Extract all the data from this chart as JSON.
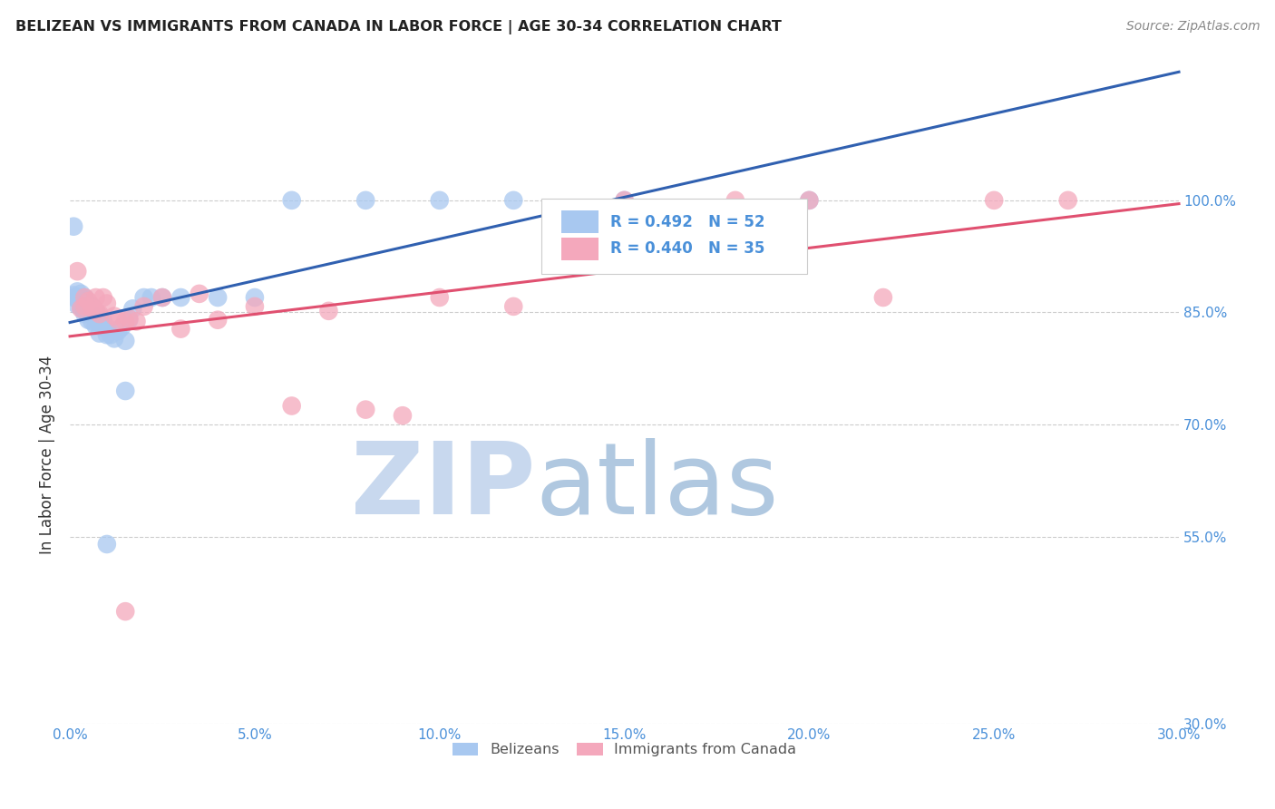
{
  "title": "BELIZEAN VS IMMIGRANTS FROM CANADA IN LABOR FORCE | AGE 30-34 CORRELATION CHART",
  "source": "Source: ZipAtlas.com",
  "ylabel": "In Labor Force | Age 30-34",
  "xlim": [
    0.0,
    0.3
  ],
  "ylim": [
    0.3,
    1.02
  ],
  "xtick_vals": [
    0.0,
    0.05,
    0.1,
    0.15,
    0.2,
    0.25,
    0.3
  ],
  "xtick_labels": [
    "0.0%",
    "5.0%",
    "10.0%",
    "15.0%",
    "20.0%",
    "25.0%",
    "30.0%"
  ],
  "ytick_vals": [
    0.3,
    0.55,
    0.7,
    0.85,
    1.0
  ],
  "ytick_labels": [
    "30.0%",
    "55.0%",
    "70.0%",
    "85.0%",
    "100.0%"
  ],
  "blue_color": "#a8c8f0",
  "pink_color": "#f4a8bc",
  "blue_line_color": "#3060b0",
  "pink_line_color": "#e05070",
  "tick_color": "#4a90d9",
  "grid_color": "#cccccc",
  "watermark_zip_color": "#c8d8ee",
  "watermark_atlas_color": "#b0c8e0",
  "legend_blue_text_color": "#4a90d9",
  "legend_pink_text_color": "#e05070",
  "blue_x": [
    0.001,
    0.001,
    0.001,
    0.002,
    0.002,
    0.002,
    0.003,
    0.003,
    0.003,
    0.003,
    0.003,
    0.004,
    0.004,
    0.004,
    0.004,
    0.005,
    0.005,
    0.005,
    0.006,
    0.006,
    0.006,
    0.007,
    0.007,
    0.007,
    0.008,
    0.008,
    0.008,
    0.009,
    0.009,
    0.01,
    0.01,
    0.011,
    0.012,
    0.013,
    0.014,
    0.015,
    0.016,
    0.017,
    0.02,
    0.022,
    0.025,
    0.03,
    0.04,
    0.05,
    0.06,
    0.08,
    0.1,
    0.12,
    0.15,
    0.2,
    0.01,
    0.015
  ],
  "blue_y": [
    0.873,
    0.87,
    0.965,
    0.86,
    0.868,
    0.878,
    0.857,
    0.862,
    0.865,
    0.87,
    0.875,
    0.848,
    0.853,
    0.86,
    0.87,
    0.84,
    0.852,
    0.858,
    0.838,
    0.848,
    0.858,
    0.832,
    0.842,
    0.852,
    0.822,
    0.835,
    0.845,
    0.83,
    0.84,
    0.82,
    0.83,
    0.82,
    0.815,
    0.825,
    0.83,
    0.812,
    0.84,
    0.855,
    0.87,
    0.87,
    0.87,
    0.87,
    0.87,
    0.87,
    1.0,
    1.0,
    1.0,
    1.0,
    1.0,
    1.0,
    0.54,
    0.745
  ],
  "pink_x": [
    0.002,
    0.003,
    0.004,
    0.004,
    0.005,
    0.006,
    0.007,
    0.007,
    0.008,
    0.009,
    0.01,
    0.012,
    0.013,
    0.015,
    0.016,
    0.018,
    0.02,
    0.025,
    0.03,
    0.035,
    0.04,
    0.05,
    0.06,
    0.07,
    0.08,
    0.09,
    0.1,
    0.12,
    0.15,
    0.18,
    0.2,
    0.22,
    0.25,
    0.27,
    0.015
  ],
  "pink_y": [
    0.905,
    0.855,
    0.858,
    0.87,
    0.865,
    0.855,
    0.852,
    0.87,
    0.848,
    0.87,
    0.862,
    0.845,
    0.84,
    0.838,
    0.842,
    0.838,
    0.858,
    0.87,
    0.828,
    0.875,
    0.84,
    0.858,
    0.725,
    0.852,
    0.72,
    0.712,
    0.87,
    0.858,
    1.0,
    1.0,
    1.0,
    0.87,
    1.0,
    1.0,
    0.45
  ]
}
